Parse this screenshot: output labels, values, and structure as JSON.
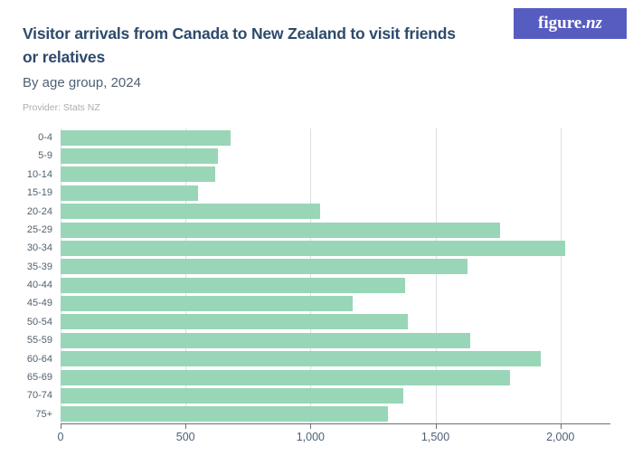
{
  "header": {
    "title_line1": "Visitor arrivals from Canada to New Zealand to visit friends",
    "title_line2": "or relatives",
    "subtitle": "By age group, 2024",
    "provider": "Provider: Stats NZ"
  },
  "logo": {
    "text": "figure.",
    "suffix": "nz",
    "bg_color": "#575cc1",
    "text_color": "#ffffff"
  },
  "chart_data": {
    "type": "bar",
    "orientation": "horizontal",
    "title": "Visitor arrivals from Canada to New Zealand to visit friends or relatives",
    "subtitle": "By age group, 2024",
    "source": "Provider: Stats NZ",
    "categories": [
      "0-4",
      "5-9",
      "10-14",
      "15-19",
      "20-24",
      "25-29",
      "30-34",
      "35-39",
      "40-44",
      "45-49",
      "50-54",
      "55-59",
      "60-64",
      "65-69",
      "70-74",
      "75+"
    ],
    "values": [
      680,
      630,
      620,
      550,
      1040,
      1760,
      2020,
      1630,
      1380,
      1170,
      1390,
      1640,
      1920,
      1800,
      1370,
      1310
    ],
    "xlabel": "",
    "ylabel": "",
    "xlim": [
      0,
      2200
    ],
    "x_ticks": [
      0,
      500,
      1000,
      1500,
      2000
    ],
    "x_tick_labels": [
      "0",
      "500",
      "1,000",
      "1,500",
      "2,000"
    ],
    "grid": true,
    "legend": false,
    "bar_color": "#98d6b7",
    "gridline_color": "#dcdedf",
    "axis_color": "#6d7175"
  }
}
